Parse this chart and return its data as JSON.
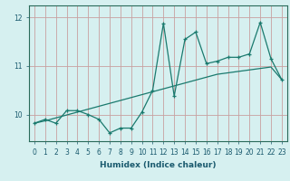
{
  "xlabel": "Humidex (Indice chaleur)",
  "bg_color": "#d6f0f0",
  "grid_color": "#c8a0a0",
  "line_color": "#1a7a6e",
  "x_data": [
    0,
    1,
    2,
    3,
    4,
    5,
    6,
    7,
    8,
    9,
    10,
    11,
    12,
    13,
    14,
    15,
    16,
    17,
    18,
    19,
    20,
    21,
    22,
    23
  ],
  "y_main": [
    9.82,
    9.9,
    9.82,
    10.08,
    10.08,
    10.0,
    9.9,
    9.62,
    9.72,
    9.72,
    10.05,
    10.5,
    11.88,
    10.38,
    11.55,
    11.7,
    11.05,
    11.1,
    11.18,
    11.18,
    11.25,
    11.9,
    11.15,
    10.72
  ],
  "y_trend": [
    9.82,
    9.87,
    9.93,
    9.99,
    10.05,
    10.11,
    10.17,
    10.23,
    10.29,
    10.35,
    10.41,
    10.47,
    10.53,
    10.59,
    10.65,
    10.71,
    10.77,
    10.83,
    10.86,
    10.89,
    10.92,
    10.95,
    10.98,
    10.72
  ],
  "ylim": [
    9.45,
    12.25
  ],
  "ytick_positions": [
    10,
    11,
    12
  ],
  "ytick_labels": [
    "10",
    "11",
    "12"
  ],
  "xticks": [
    0,
    1,
    2,
    3,
    4,
    5,
    6,
    7,
    8,
    9,
    10,
    11,
    12,
    13,
    14,
    15,
    16,
    17,
    18,
    19,
    20,
    21,
    22,
    23
  ],
  "marker_size": 3,
  "line_width": 0.9,
  "xlabel_fontsize": 6.5,
  "tick_fontsize": 5.5
}
